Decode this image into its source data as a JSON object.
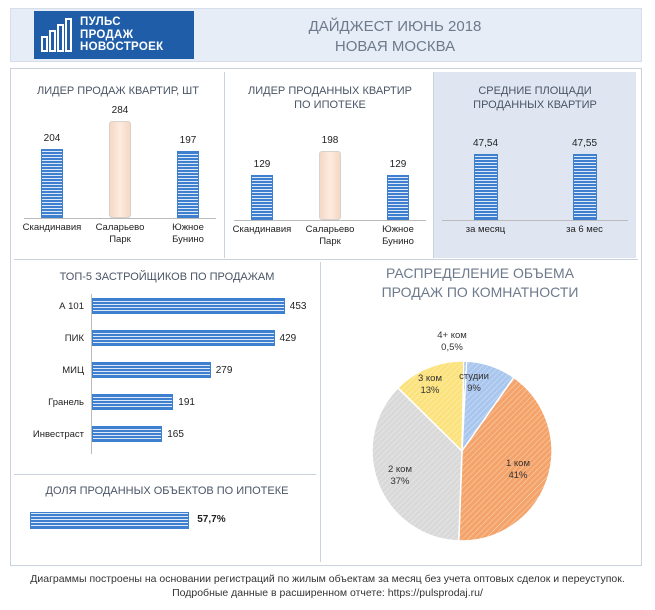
{
  "header": {
    "logo_lines": [
      "ПУЛЬС",
      "ПРОДАЖ",
      "НОВОСТРОЕК"
    ],
    "title": "ДАЙДЖЕСТ ИЮНЬ 2018",
    "subtitle": "НОВАЯ МОСКВА"
  },
  "panels": {
    "sales_leader_title": "ЛИДЕР ПРОДАЖ  КВАРТИР, ШТ",
    "mortgage_leader_title_1": "ЛИДЕР ПРОДАННЫХ КВАРТИР",
    "mortgage_leader_title_2": "ПО ИПОТЕКЕ",
    "avg_area_title_1": "СРЕДНИЕ ПЛОЩАДИ",
    "avg_area_title_2": "ПРОДАННЫХ КВАРТИР",
    "top5_title": "ТОП-5 ЗАСТРОЙЩИКОВ ПО ПРОДАЖАМ",
    "mortgage_share_title": "ДОЛЯ ПРОДАННЫХ ОБЪЕКТОВ ПО ИПОТЕКЕ",
    "rooms_title_1": "РАСПРЕДЕЛЕНИЕ ОБЪЕМА",
    "rooms_title_2": "ПРОДАЖ ПО КОМНАТНОСТИ"
  },
  "chart_data": [
    {
      "type": "bar",
      "title": "ЛИДЕР ПРОДАЖ  КВАРТИР, ШТ",
      "categories": [
        [
          "Скандинавия"
        ],
        [
          "Саларьево",
          "Парк"
        ],
        [
          "Южное",
          "Бунино"
        ]
      ],
      "values": [
        204,
        284,
        197
      ],
      "highlight": 1
    },
    {
      "type": "bar",
      "title": "ЛИДЕР ПРОДАННЫХ КВАРТИР ПО ИПОТЕКЕ",
      "categories": [
        [
          "Скандинавия"
        ],
        [
          "Саларьево",
          "Парк"
        ],
        [
          "Южное",
          "Бунино"
        ]
      ],
      "values": [
        129,
        198,
        129
      ],
      "highlight": 1
    },
    {
      "type": "bar",
      "title": "СРЕДНИЕ ПЛОЩАДИ ПРОДАННЫХ КВАРТИР",
      "categories": [
        [
          "за месяц"
        ],
        [
          "за 6 мес"
        ]
      ],
      "values": [
        47.54,
        47.55
      ],
      "value_labels": [
        "47,54",
        "47,55"
      ]
    },
    {
      "type": "bar",
      "orientation": "horizontal",
      "title": "ТОП-5 ЗАСТРОЙЩИКОВ ПО ПРОДАЖАМ",
      "categories": [
        "А 101",
        "ПИК",
        "МИЦ",
        "Гранель",
        "Инвестраст"
      ],
      "values": [
        453,
        429,
        279,
        191,
        165
      ]
    },
    {
      "type": "bar",
      "orientation": "horizontal",
      "title": "ДОЛЯ ПРОДАННЫХ ОБЪЕКТОВ ПО ИПОТЕКЕ",
      "values": [
        57.7
      ],
      "value_labels": [
        "57,7%"
      ]
    },
    {
      "type": "pie",
      "title": "РАСПРЕДЕЛЕНИЕ ОБЪЕМА ПРОДАЖ ПО КОМНАТНОСТИ",
      "slices": [
        {
          "label": "студии",
          "value": 9,
          "pct": "9%",
          "color": "#a9c6ee"
        },
        {
          "label": "1 ком",
          "value": 41,
          "pct": "41%",
          "color": "#f4a46a"
        },
        {
          "label": "2 ком",
          "value": 37,
          "pct": "37%",
          "color": "#d9d9d9"
        },
        {
          "label": "3 ком",
          "value": 13,
          "pct": "13%",
          "color": "#fbe27c"
        },
        {
          "label": "4+ ком",
          "value": 0.5,
          "pct": "0,5%",
          "color": "#7fa7e0"
        }
      ]
    }
  ],
  "footnote": {
    "line1": "Диаграммы построены на основании регистраций по жилым объектам за месяц без учета оптовых сделок и переуступок.",
    "line2": "Подробные данные в расширенном отчете: https://pulsprodaj.ru/"
  }
}
